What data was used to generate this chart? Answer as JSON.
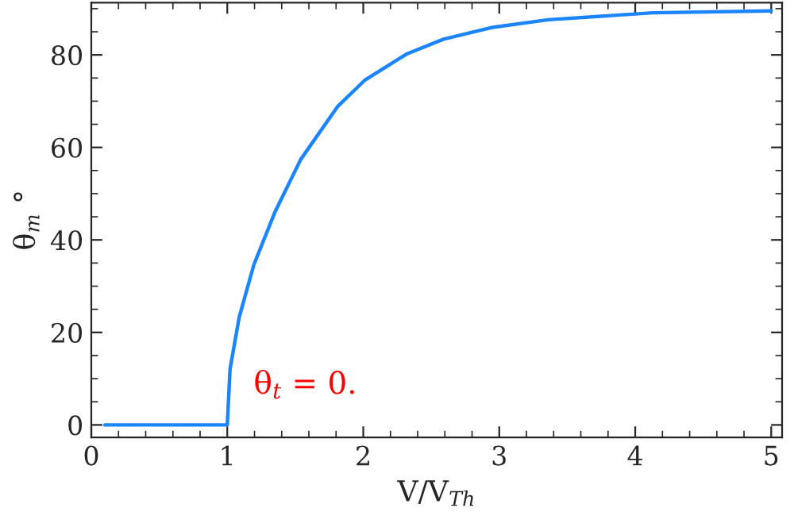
{
  "chart_data": {
    "type": "line",
    "xlabel": "V/V$_{Th}$",
    "ylabel": "θ$_{m}$ °",
    "x": [
      0.1,
      0.5,
      0.99,
      1.0,
      1.02,
      1.087,
      1.195,
      1.35,
      1.54,
      1.81,
      2.01,
      2.32,
      2.59,
      2.94,
      3.36,
      4.13,
      5.0
    ],
    "series": [
      {
        "color": "#1a85ff",
        "values": [
          0,
          0,
          0,
          0,
          12,
          23.2,
          34.6,
          46,
          57.4,
          68.8,
          74.5,
          80.2,
          83.4,
          85.9,
          87.6,
          89.1,
          89.5
        ]
      }
    ],
    "xlim": [
      0,
      5.08
    ],
    "ylim": [
      -2.7,
      91.3
    ],
    "xticks": [
      0,
      1,
      2,
      3,
      4,
      5
    ],
    "yticks": [
      0,
      20,
      40,
      60,
      80
    ],
    "annotations": [
      "θ$_{t}$ = 0."
    ],
    "grid": false,
    "legend": false,
    "marker": "none",
    "line_style": "solid"
  }
}
